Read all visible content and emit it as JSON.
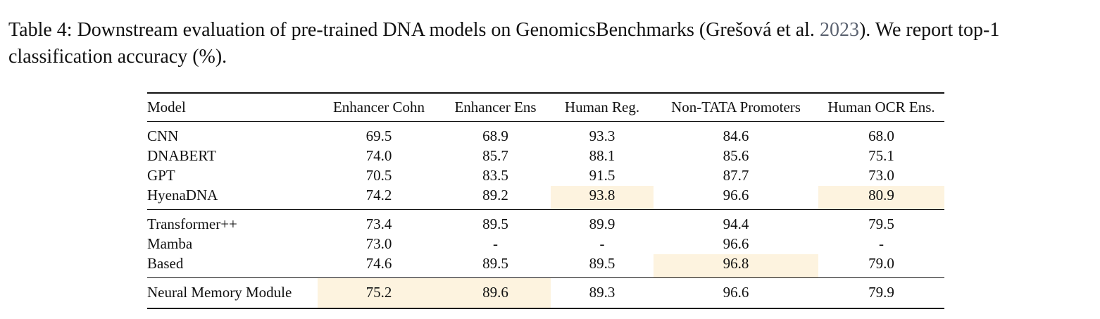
{
  "caption": {
    "prefix": "Table 4: Downstream evaluation of pre-trained DNA models on GenomicsBenchmarks (Grešová et al. ",
    "year": "2023",
    "suffix": "). We report top-1 classification accuracy (%)."
  },
  "table": {
    "headers": [
      "Model",
      "Enhancer Cohn",
      "Enhancer Ens",
      "Human Reg.",
      "Non-TATA Promoters",
      "Human OCR Ens."
    ],
    "rows": [
      {
        "model": "CNN",
        "values": [
          "69.5",
          "68.9",
          "93.3",
          "84.6",
          "68.0"
        ]
      },
      {
        "model": "DNABERT",
        "values": [
          "74.0",
          "85.7",
          "88.1",
          "85.6",
          "75.1"
        ]
      },
      {
        "model": "GPT",
        "values": [
          "70.5",
          "83.5",
          "91.5",
          "87.7",
          "73.0"
        ]
      },
      {
        "model": "HyenaDNA",
        "values": [
          "74.2",
          "89.2",
          "93.8",
          "96.6",
          "80.9"
        ]
      },
      {
        "model": "Transformer++",
        "values": [
          "73.4",
          "89.5",
          "89.9",
          "94.4",
          "79.5"
        ]
      },
      {
        "model": "Mamba",
        "values": [
          "73.0",
          "-",
          "-",
          "96.6",
          "-"
        ]
      },
      {
        "model": "Based",
        "values": [
          "74.6",
          "89.5",
          "89.5",
          "96.8",
          "79.0"
        ]
      },
      {
        "model": "Neural Memory Module",
        "values": [
          "75.2",
          "89.6",
          "89.3",
          "96.6",
          "79.9"
        ]
      }
    ],
    "highlight_color": "#fdf3df",
    "highlighted_cells": [
      "HyenaDNA / Human Reg.",
      "HyenaDNA / Human OCR Ens.",
      "Based / Non-TATA Promoters",
      "Neural Memory Module / Enhancer Cohn",
      "Neural Memory Module / Enhancer Ens"
    ]
  }
}
